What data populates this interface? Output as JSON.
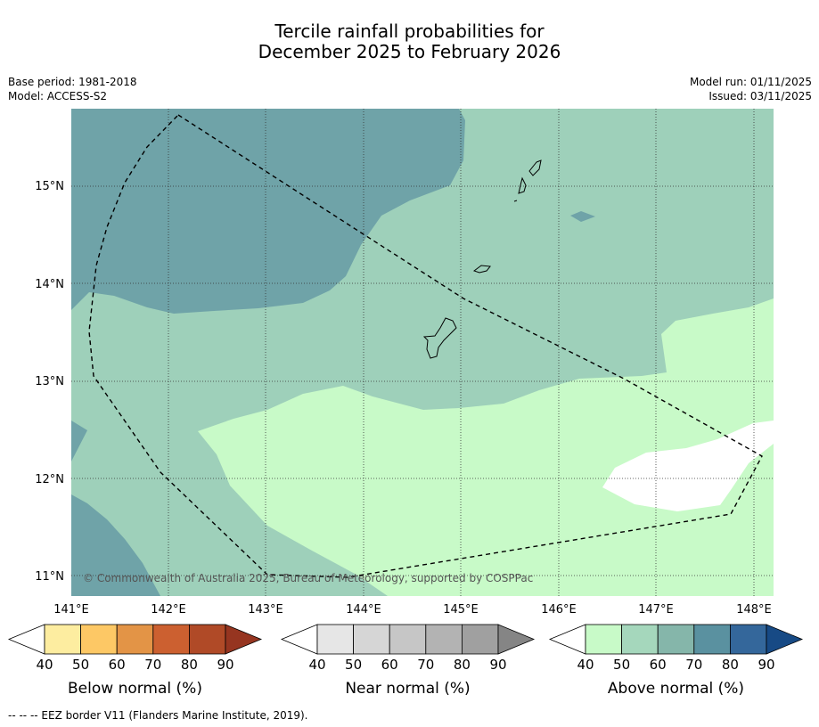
{
  "title": {
    "line1": "Tercile rainfall probabilities for",
    "line2": "December 2025 to February 2026"
  },
  "meta": {
    "base_period": "Base period: 1981-2018",
    "model": "Model: ACCESS-S2",
    "model_run": "Model run: 01/11/2025",
    "issued": "Issued: 03/11/2025"
  },
  "map": {
    "lat_labels": [
      "15°N",
      "14°N",
      "13°N",
      "12°N",
      "11°N"
    ],
    "lon_labels": [
      "141°E",
      "142°E",
      "143°E",
      "144°E",
      "145°E",
      "146°E",
      "147°E",
      "148°E"
    ],
    "copyright": "© Commonwealth of Australia 2025, Bureau of Meteorology, supported by COSPPac",
    "category_colors": {
      "above_50": "#c8fac8",
      "above_60": "#9ed0ba",
      "above_70": "#6fa3a8"
    }
  },
  "colorbars": [
    {
      "name": "Below normal (%)",
      "ticks": [
        "40",
        "50",
        "60",
        "70",
        "80",
        "90"
      ],
      "colors": [
        "#ffffff",
        "#fdeda0",
        "#fdc865",
        "#e39446",
        "#cc6030",
        "#b04a27",
        "#963520"
      ]
    },
    {
      "name": "Near normal (%)",
      "ticks": [
        "40",
        "50",
        "60",
        "70",
        "80",
        "90"
      ],
      "colors": [
        "#ffffff",
        "#e6e6e6",
        "#d6d6d6",
        "#c6c6c6",
        "#b3b3b3",
        "#a0a0a0",
        "#858585"
      ]
    },
    {
      "name": "Above normal (%)",
      "ticks": [
        "40",
        "50",
        "60",
        "70",
        "80",
        "90"
      ],
      "colors": [
        "#ffffff",
        "#c8fac8",
        "#a5d7bc",
        "#85b6aa",
        "#5a91a0",
        "#34679b",
        "#174a85"
      ]
    }
  ],
  "footnote": "--  --  -- EEZ border V11 (Flanders Marine Institute, 2019)."
}
